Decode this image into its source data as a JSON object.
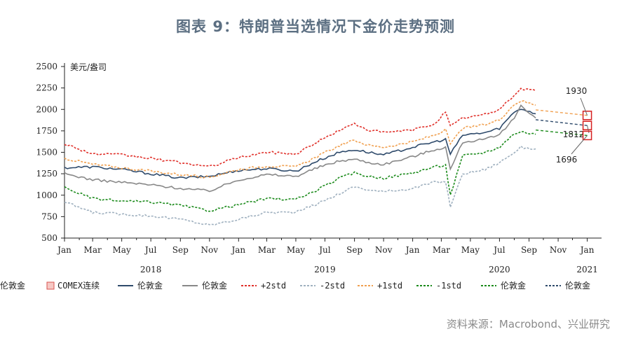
{
  "title": "图表 9：特朗普当选情况下金价走势预测",
  "source": "资料来源：Macrobond、兴业研究",
  "chart_data": {
    "type": "line",
    "ylabel_unit": "美元/盎司",
    "ylim": [
      500,
      2500
    ],
    "yticks": [
      500,
      750,
      1000,
      1250,
      1500,
      1750,
      2000,
      2250,
      2500
    ],
    "xticks": [
      "Jan",
      "Mar",
      "May",
      "Jul",
      "Sep",
      "Nov",
      "Jan",
      "Mar",
      "May",
      "Jul",
      "Sep",
      "Nov",
      "Jan",
      "Mar",
      "May",
      "Jul",
      "Sep",
      "Nov",
      "Jan"
    ],
    "year_labels": [
      "2018",
      "2019",
      "2020",
      "2021"
    ],
    "x_range": [
      "2018-01-01",
      "2021-01-31"
    ],
    "grid": false,
    "legend_position": "bottom",
    "annotations": [
      {
        "label": "1930",
        "date": "2021-01-01",
        "value": 1930
      },
      {
        "label": "1812",
        "date": "2021-01-01",
        "value": 1812
      },
      {
        "label": "1696",
        "date": "2021-01-01",
        "value": 1696
      }
    ],
    "series": [
      {
        "name": "COMEX连续",
        "color": "#d9534f",
        "style": "marker"
      },
      {
        "name": "伦敦金",
        "color": "#2e4a6b",
        "style": "solid",
        "dates": [
          "2018-01-01",
          "2018-03-01",
          "2018-05-01",
          "2018-07-01",
          "2018-09-01",
          "2018-11-01",
          "2019-01-01",
          "2019-03-01",
          "2019-05-01",
          "2019-06-15",
          "2019-08-01",
          "2019-09-01",
          "2019-10-01",
          "2019-11-01",
          "2020-01-01",
          "2020-02-15",
          "2020-03-10",
          "2020-03-20",
          "2020-04-15",
          "2020-06-01",
          "2020-07-01",
          "2020-08-01",
          "2020-08-15",
          "2020-09-15"
        ],
        "values": [
          1320,
          1330,
          1300,
          1250,
          1200,
          1220,
          1290,
          1310,
          1280,
          1400,
          1500,
          1530,
          1500,
          1470,
          1560,
          1620,
          1650,
          1480,
          1700,
          1730,
          1780,
          1970,
          2010,
          1950
        ]
      },
      {
        "name": "伦敦金",
        "color": "#888888",
        "style": "solid",
        "dates": [
          "2018-01-01",
          "2018-03-01",
          "2018-05-01",
          "2018-07-01",
          "2018-09-01",
          "2018-11-01",
          "2019-01-01",
          "2019-03-01",
          "2019-05-01",
          "2019-06-15",
          "2019-08-01",
          "2019-09-01",
          "2019-10-01",
          "2019-11-01",
          "2020-01-01",
          "2020-02-15",
          "2020-03-10",
          "2020-03-20",
          "2020-04-15",
          "2020-06-01",
          "2020-07-01",
          "2020-08-01",
          "2020-08-15",
          "2020-09-15"
        ],
        "values": [
          1250,
          1180,
          1150,
          1120,
          1080,
          1050,
          1180,
          1240,
          1220,
          1320,
          1400,
          1420,
          1380,
          1360,
          1450,
          1530,
          1560,
          1300,
          1620,
          1650,
          1700,
          1900,
          2050,
          1900
        ]
      },
      {
        "name": "+2std",
        "color": "#e0302a",
        "style": "dashed",
        "dates": [
          "2018-01-01",
          "2018-03-01",
          "2018-05-01",
          "2018-07-01",
          "2018-09-01",
          "2018-11-01",
          "2019-01-01",
          "2019-03-01",
          "2019-05-01",
          "2019-06-15",
          "2019-08-01",
          "2019-09-01",
          "2019-10-01",
          "2019-11-01",
          "2020-01-01",
          "2020-02-15",
          "2020-03-10",
          "2020-03-20",
          "2020-04-15",
          "2020-06-01",
          "2020-07-01",
          "2020-08-01",
          "2020-08-15",
          "2020-09-15"
        ],
        "values": [
          1600,
          1480,
          1470,
          1430,
          1380,
          1330,
          1440,
          1500,
          1480,
          1620,
          1760,
          1830,
          1760,
          1730,
          1760,
          1830,
          1970,
          1800,
          1900,
          1940,
          2000,
          2170,
          2240,
          2220
        ]
      },
      {
        "name": "-2std",
        "color": "#9fb0bf",
        "style": "dashed",
        "dates": [
          "2018-01-01",
          "2018-03-01",
          "2018-05-01",
          "2018-07-01",
          "2018-09-01",
          "2018-11-01",
          "2019-01-01",
          "2019-03-01",
          "2019-05-01",
          "2019-06-15",
          "2019-08-01",
          "2019-09-01",
          "2019-10-01",
          "2019-11-01",
          "2020-01-01",
          "2020-02-15",
          "2020-03-10",
          "2020-03-20",
          "2020-04-15",
          "2020-06-01",
          "2020-07-01",
          "2020-08-01",
          "2020-08-15",
          "2020-09-15"
        ],
        "values": [
          920,
          800,
          780,
          760,
          720,
          650,
          720,
          800,
          800,
          900,
          1020,
          1100,
          1060,
          1040,
          1080,
          1150,
          1160,
          870,
          1250,
          1300,
          1380,
          1500,
          1560,
          1540
        ]
      },
      {
        "name": "+1std",
        "color": "#f0a050",
        "style": "dashed",
        "dates": [
          "2018-01-01",
          "2018-03-01",
          "2018-05-01",
          "2018-07-01",
          "2018-09-01",
          "2018-11-01",
          "2019-01-01",
          "2019-03-01",
          "2019-05-01",
          "2019-06-15",
          "2019-08-01",
          "2019-09-01",
          "2019-10-01",
          "2019-11-01",
          "2020-01-01",
          "2020-02-15",
          "2020-03-10",
          "2020-03-20",
          "2020-04-15",
          "2020-06-01",
          "2020-07-01",
          "2020-08-01",
          "2020-08-15",
          "2020-09-15"
        ],
        "values": [
          1430,
          1360,
          1320,
          1280,
          1240,
          1210,
          1300,
          1340,
          1330,
          1450,
          1580,
          1640,
          1580,
          1560,
          1620,
          1700,
          1760,
          1600,
          1780,
          1820,
          1880,
          2060,
          2100,
          2050
        ]
      },
      {
        "name": "-1std",
        "color": "#1a8a1a",
        "style": "dashed",
        "dates": [
          "2018-01-01",
          "2018-03-01",
          "2018-05-01",
          "2018-07-01",
          "2018-09-01",
          "2018-11-01",
          "2019-01-01",
          "2019-03-01",
          "2019-05-01",
          "2019-06-15",
          "2019-08-01",
          "2019-09-01",
          "2019-10-01",
          "2019-11-01",
          "2020-01-01",
          "2020-02-15",
          "2020-03-10",
          "2020-03-20",
          "2020-04-15",
          "2020-06-01",
          "2020-07-01",
          "2020-08-01",
          "2020-08-15",
          "2020-09-15"
        ],
        "values": [
          1090,
          960,
          930,
          920,
          880,
          820,
          890,
          960,
          950,
          1060,
          1200,
          1260,
          1220,
          1200,
          1260,
          1330,
          1350,
          1000,
          1460,
          1500,
          1560,
          1720,
          1740,
          1710
        ]
      },
      {
        "name": "伦敦金",
        "color": "#1a8a1a",
        "style": "dashed",
        "dates": [
          "2020-09-15",
          "2021-01-01"
        ],
        "values": [
          1760,
          1696
        ]
      },
      {
        "name": "伦敦金",
        "color": "#2e4a6b",
        "style": "dashed",
        "dates": [
          "2020-09-15",
          "2021-01-01"
        ],
        "values": [
          1880,
          1812
        ]
      },
      {
        "name": "伦敦金",
        "color": "#f0a050",
        "style": "dashed",
        "dates": [
          "2020-09-15",
          "2021-01-01"
        ],
        "values": [
          1995,
          1930
        ]
      }
    ]
  }
}
